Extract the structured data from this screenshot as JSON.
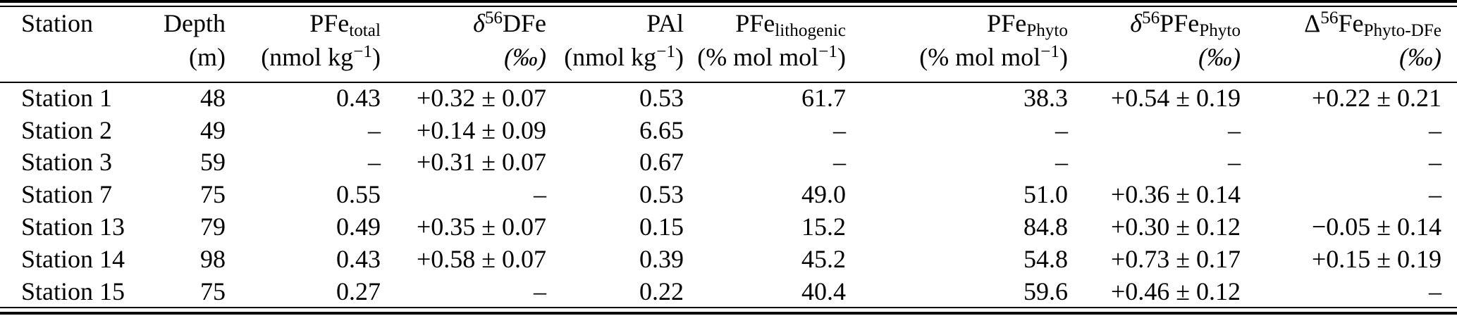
{
  "colors": {
    "ink": "#000000",
    "background": "#ffffff"
  },
  "table": {
    "columns": [
      {
        "name": "station",
        "line1": [
          {
            "k": "t",
            "v": "Station"
          }
        ],
        "line2": []
      },
      {
        "name": "depth",
        "line1": [
          {
            "k": "t",
            "v": "Depth"
          }
        ],
        "line2": [
          {
            "k": "t",
            "v": "(m)"
          }
        ]
      },
      {
        "name": "pfe-total",
        "line1": [
          {
            "k": "t",
            "v": "PFe"
          },
          {
            "k": "sub",
            "v": "total"
          }
        ],
        "line2": [
          {
            "k": "t",
            "v": "(nmol kg"
          },
          {
            "k": "sup",
            "v": "−1"
          },
          {
            "k": "t",
            "v": ")"
          }
        ]
      },
      {
        "name": "delta56-dfe",
        "line1": [
          {
            "k": "i",
            "v": "δ"
          },
          {
            "k": "sup",
            "v": "56"
          },
          {
            "k": "t",
            "v": "DFe"
          }
        ],
        "line2": [
          {
            "k": "i",
            "v": "(‰)"
          }
        ]
      },
      {
        "name": "pal",
        "line1": [
          {
            "k": "t",
            "v": "PAl"
          }
        ],
        "line2": [
          {
            "k": "t",
            "v": "(nmol kg"
          },
          {
            "k": "sup",
            "v": "−1"
          },
          {
            "k": "t",
            "v": ")"
          }
        ]
      },
      {
        "name": "pfe-lithogenic",
        "line1": [
          {
            "k": "t",
            "v": "PFe"
          },
          {
            "k": "sub",
            "v": "lithogenic"
          }
        ],
        "line2": [
          {
            "k": "t",
            "v": "(% mol mol"
          },
          {
            "k": "sup",
            "v": "−1"
          },
          {
            "k": "t",
            "v": ")"
          }
        ]
      },
      {
        "name": "pfe-phyto",
        "line1": [
          {
            "k": "t",
            "v": "PFe"
          },
          {
            "k": "sub",
            "v": "Phyto"
          }
        ],
        "line2": [
          {
            "k": "t",
            "v": "(% mol mol"
          },
          {
            "k": "sup",
            "v": "−1"
          },
          {
            "k": "t",
            "v": ")"
          }
        ]
      },
      {
        "name": "delta56-pfe-phyto",
        "line1": [
          {
            "k": "i",
            "v": "δ"
          },
          {
            "k": "sup",
            "v": "56"
          },
          {
            "k": "t",
            "v": "PFe"
          },
          {
            "k": "sub",
            "v": "Phyto"
          }
        ],
        "line2": [
          {
            "k": "i",
            "v": "(‰)"
          }
        ]
      },
      {
        "name": "delta-cap56-fe-phyto-dfe",
        "line1": [
          {
            "k": "t",
            "v": "Δ"
          },
          {
            "k": "sup",
            "v": "56"
          },
          {
            "k": "t",
            "v": "Fe"
          },
          {
            "k": "sub",
            "v": "Phyto-DFe"
          }
        ],
        "line2": [
          {
            "k": "i",
            "v": "(‰)"
          }
        ]
      }
    ],
    "rows": [
      {
        "cells": [
          "Station 1",
          "48",
          "0.43",
          "+0.32 ± 0.07",
          "0.53",
          "61.7",
          "38.3",
          "+0.54 ± 0.19",
          "+0.22 ± 0.21"
        ]
      },
      {
        "cells": [
          "Station 2",
          "49",
          "–",
          "+0.14 ± 0.09",
          "6.65",
          "–",
          "–",
          "–",
          "–"
        ]
      },
      {
        "cells": [
          "Station 3",
          "59",
          "–",
          "+0.31 ± 0.07",
          "0.67",
          "–",
          "–",
          "–",
          "–"
        ]
      },
      {
        "cells": [
          "Station 7",
          "75",
          "0.55",
          "–",
          "0.53",
          "49.0",
          "51.0",
          "+0.36 ± 0.14",
          "–"
        ]
      },
      {
        "cells": [
          "Station 13",
          "79",
          "0.49",
          "+0.35 ± 0.07",
          "0.15",
          "15.2",
          "84.8",
          "+0.30 ± 0.12",
          "−0.05 ± 0.14"
        ]
      },
      {
        "cells": [
          "Station 14",
          "98",
          "0.43",
          "+0.58 ± 0.07",
          "0.39",
          "45.2",
          "54.8",
          "+0.73 ± 0.17",
          "+0.15 ± 0.19"
        ]
      },
      {
        "cells": [
          "Station 15",
          "75",
          "0.27",
          "–",
          "0.22",
          "40.4",
          "59.6",
          "+0.46 ± 0.12",
          "–"
        ]
      }
    ]
  }
}
